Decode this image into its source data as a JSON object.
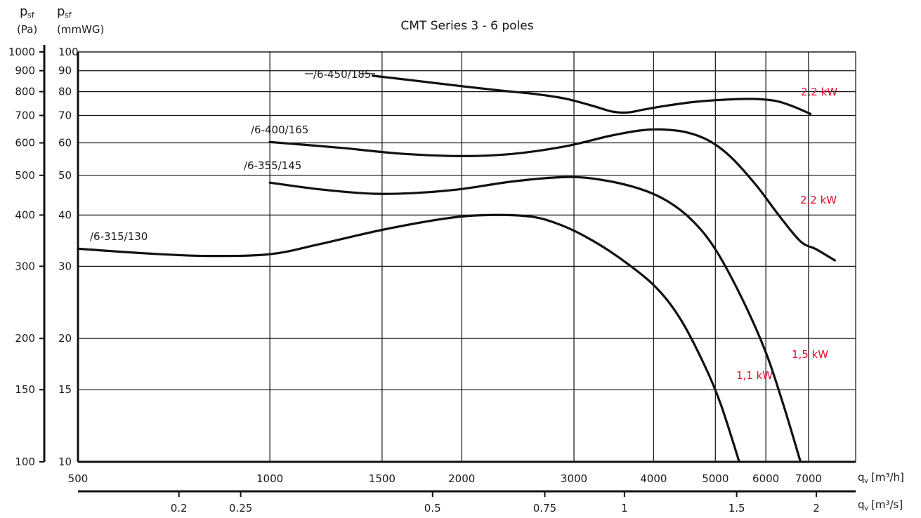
{
  "chart_data": {
    "type": "line",
    "title": "CMT Series 3 - 6 poles",
    "x_scale": "log",
    "y_scale": "log",
    "xlim": [
      500,
      8300
    ],
    "ylim_pa": [
      100,
      1000
    ],
    "ylim_mmwg": [
      10,
      100
    ],
    "grid": true,
    "axes": {
      "y_left_pa": {
        "label_main": "p",
        "label_sub": "sf",
        "unit": "(Pa)",
        "ticks": [
          100,
          150,
          200,
          300,
          400,
          500,
          600,
          700,
          800,
          900,
          1000
        ]
      },
      "y_inner_mmwg": {
        "label_main": "p",
        "label_sub": "sf",
        "unit": "(mmWG)",
        "ticks": [
          10,
          15,
          20,
          30,
          40,
          50,
          60,
          70,
          80,
          90,
          100
        ]
      },
      "x_m3h": {
        "label_main": "q",
        "label_sub": "v",
        "unit": "[m³/h]",
        "ticks": [
          500,
          1000,
          1500,
          2000,
          3000,
          4000,
          5000,
          6000,
          7000
        ]
      },
      "x_m3s": {
        "label_main": "q",
        "label_sub": "v",
        "unit": "[m³/s]",
        "ticks": [
          0.2,
          0.25,
          0.5,
          0.75,
          1,
          1.5,
          2
        ]
      }
    },
    "series": [
      {
        "name": "/6-315/130",
        "x": [
          500,
          650,
          800,
          1000,
          1200,
          1500,
          1900,
          2200,
          2550,
          2800,
          3100,
          3500,
          4000,
          4400,
          4800,
          5100,
          5450
        ],
        "y": [
          331,
          322,
          318,
          321,
          340,
          368,
          393,
          400,
          397,
          383,
          357,
          318,
          270,
          224,
          173,
          138,
          100
        ]
      },
      {
        "name": "/6-355/145",
        "x": [
          1000,
          1200,
          1450,
          1700,
          2000,
          2400,
          2900,
          3300,
          3800,
          4200,
          4600,
          5000,
          5500,
          6000,
          6400,
          6800
        ],
        "y": [
          480,
          462,
          451,
          453,
          463,
          483,
          495,
          488,
          464,
          433,
          388,
          330,
          251,
          185,
          137,
          100
        ]
      },
      {
        "name": "/6-400/165",
        "x": [
          1000,
          1300,
          1600,
          2000,
          2400,
          2900,
          3400,
          3800,
          4100,
          4500,
          4900,
          5300,
          5800,
          6300,
          6800,
          7200,
          7700
        ],
        "y": [
          603,
          583,
          565,
          557,
          564,
          588,
          623,
          643,
          647,
          637,
          606,
          552,
          472,
          398,
          345,
          330,
          310
        ]
      },
      {
        "name": "/6-450/185",
        "x": [
          1450,
          1700,
          2000,
          2300,
          2600,
          2900,
          3200,
          3450,
          3650,
          3850,
          4200,
          4700,
          5200,
          5700,
          6200,
          6600,
          7050
        ],
        "y": [
          875,
          850,
          825,
          805,
          790,
          770,
          740,
          715,
          712,
          723,
          740,
          757,
          765,
          768,
          760,
          738,
          706
        ]
      }
    ],
    "annotations": [
      {
        "text": "/6-315/130",
        "series": "/6-315/130"
      },
      {
        "text": "/6-355/145",
        "series": "/6-355/145"
      },
      {
        "text": "/6-400/165",
        "series": "/6-400/165"
      },
      {
        "text": "/6-450/185",
        "series": "/6-450/185"
      },
      {
        "text": "2,2 kW",
        "series": "/6-450/185",
        "color": "#e30b2e"
      },
      {
        "text": "2,2 kW",
        "series": "/6-400/165",
        "color": "#e30b2e"
      },
      {
        "text": "1,5 kW",
        "series": "/6-355/145",
        "color": "#e30b2e"
      },
      {
        "text": "1,1 kW",
        "series": "/6-315/130",
        "color": "#e30b2e"
      }
    ],
    "colors": {
      "curve": "#111111",
      "grid": "#111111",
      "power": "#e30b2e"
    }
  }
}
